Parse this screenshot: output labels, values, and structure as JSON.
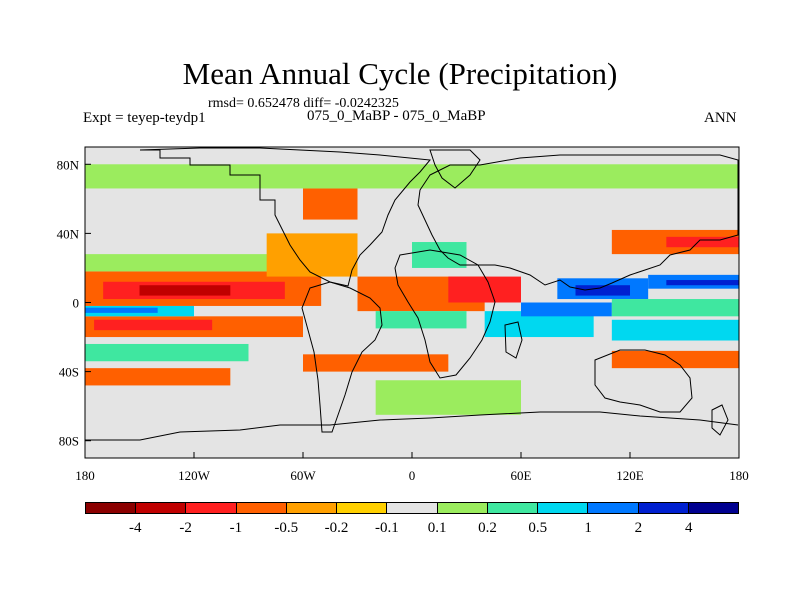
{
  "chart_data": {
    "type": "heatmap",
    "title": "Mean Annual Cycle (Precipitation)",
    "stats": "rmsd= 0.652478 diff= -0.0242325",
    "experiment": "Expt = teyep-teydp1",
    "case": "075_0_MaBP - 075_0_MaBP",
    "season": "ANN",
    "x_ticks": [
      "180",
      "120W",
      "60W",
      "0",
      "60E",
      "120E",
      "180"
    ],
    "x_tick_lon": [
      -180,
      -120,
      -60,
      0,
      60,
      120,
      180
    ],
    "y_ticks": [
      "80N",
      "40N",
      "0",
      "40S",
      "80S"
    ],
    "y_tick_lat": [
      80,
      40,
      0,
      -40,
      -80
    ],
    "xlim": [
      -180,
      180
    ],
    "ylim": [
      -90,
      90
    ],
    "colorbar_levels": [
      "-4",
      "-2",
      "-1",
      "-0.5",
      "-0.2",
      "-0.1",
      "0.1",
      "0.2",
      "0.5",
      "1",
      "2",
      "4"
    ],
    "colorbar_colors": [
      "#8b0000",
      "#c00000",
      "#ff2020",
      "#ff6000",
      "#ffa000",
      "#ffd000",
      "#e4e4e4",
      "#9bec5e",
      "#3fe7a0",
      "#00d8f0",
      "#0078ff",
      "#0020d0",
      "#000090"
    ],
    "regions": [
      {
        "lon": [
          -180,
          180
        ],
        "lat": [
          -90,
          90
        ],
        "level": 6
      },
      {
        "lon": [
          -180,
          -50
        ],
        "lat": [
          -2,
          18
        ],
        "level": 3
      },
      {
        "lon": [
          -170,
          -70
        ],
        "lat": [
          2,
          12
        ],
        "level": 2
      },
      {
        "lon": [
          -150,
          -100
        ],
        "lat": [
          4,
          10
        ],
        "level": 1
      },
      {
        "lon": [
          -180,
          -60
        ],
        "lat": [
          -20,
          -8
        ],
        "level": 3
      },
      {
        "lon": [
          -175,
          -110
        ],
        "lat": [
          -16,
          -10
        ],
        "level": 2
      },
      {
        "lon": [
          -180,
          -120
        ],
        "lat": [
          -8,
          -2
        ],
        "level": 9
      },
      {
        "lon": [
          -180,
          -140
        ],
        "lat": [
          -6,
          -3
        ],
        "level": 10
      },
      {
        "lon": [
          -180,
          -60
        ],
        "lat": [
          18,
          28
        ],
        "level": 7
      },
      {
        "lon": [
          -180,
          -90
        ],
        "lat": [
          -34,
          -24
        ],
        "level": 8
      },
      {
        "lon": [
          -180,
          -100
        ],
        "lat": [
          -48,
          -38
        ],
        "level": 3
      },
      {
        "lon": [
          -80,
          -30
        ],
        "lat": [
          15,
          40
        ],
        "level": 4
      },
      {
        "lon": [
          -60,
          -30
        ],
        "lat": [
          48,
          66
        ],
        "level": 3
      },
      {
        "lon": [
          -30,
          40
        ],
        "lat": [
          -5,
          15
        ],
        "level": 3
      },
      {
        "lon": [
          0,
          30
        ],
        "lat": [
          20,
          35
        ],
        "level": 8
      },
      {
        "lon": [
          20,
          60
        ],
        "lat": [
          0,
          15
        ],
        "level": 2
      },
      {
        "lon": [
          40,
          100
        ],
        "lat": [
          -20,
          -5
        ],
        "level": 9
      },
      {
        "lon": [
          60,
          110
        ],
        "lat": [
          -8,
          0
        ],
        "level": 10
      },
      {
        "lon": [
          80,
          130
        ],
        "lat": [
          2,
          14
        ],
        "level": 10
      },
      {
        "lon": [
          90,
          120
        ],
        "lat": [
          4,
          10
        ],
        "level": 11
      },
      {
        "lon": [
          130,
          180
        ],
        "lat": [
          8,
          16
        ],
        "level": 10
      },
      {
        "lon": [
          140,
          180
        ],
        "lat": [
          10,
          13
        ],
        "level": 11
      },
      {
        "lon": [
          110,
          180
        ],
        "lat": [
          28,
          42
        ],
        "level": 3
      },
      {
        "lon": [
          140,
          180
        ],
        "lat": [
          32,
          38
        ],
        "level": 2
      },
      {
        "lon": [
          110,
          180
        ],
        "lat": [
          -8,
          2
        ],
        "level": 8
      },
      {
        "lon": [
          110,
          180
        ],
        "lat": [
          -22,
          -10
        ],
        "level": 9
      },
      {
        "lon": [
          110,
          180
        ],
        "lat": [
          -38,
          -28
        ],
        "level": 3
      },
      {
        "lon": [
          -20,
          60
        ],
        "lat": [
          -65,
          -45
        ],
        "level": 7
      },
      {
        "lon": [
          -180,
          180
        ],
        "lat": [
          66,
          80
        ],
        "level": 7
      },
      {
        "lon": [
          -60,
          20
        ],
        "lat": [
          -40,
          -30
        ],
        "level": 3
      },
      {
        "lon": [
          -20,
          30
        ],
        "lat": [
          -15,
          -5
        ],
        "level": 8
      }
    ]
  }
}
